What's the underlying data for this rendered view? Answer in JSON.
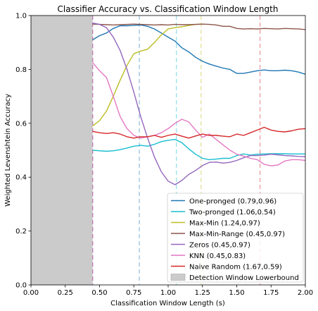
{
  "chart_data": {
    "type": "line",
    "title": "Classifier Accuracy vs. Classification Window Length",
    "xlabel": "Classification Window Length (s)",
    "ylabel": "Weighted Levenshtein Accuracy",
    "xlim": [
      0.0,
      2.0
    ],
    "ylim": [
      0.0,
      1.0
    ],
    "xticks": [
      "0.00",
      "0.25",
      "0.50",
      "0.75",
      "1.00",
      "1.25",
      "1.50",
      "1.75",
      "2.00"
    ],
    "yticks": [
      "0.0",
      "0.2",
      "0.4",
      "0.6",
      "0.8",
      "1.0"
    ],
    "grid": false,
    "legend_position": "lower-right",
    "shaded_region": {
      "label": "Detection Window Lowerbound",
      "x_range": [
        0.0,
        0.45
      ],
      "color": "#cbcbcb"
    },
    "series": [
      {
        "name": "One-pronged (0.79,0.96)",
        "color": "#1f77b4",
        "peak_x": 0.79,
        "x": [
          0.45,
          0.5,
          0.55,
          0.6,
          0.65,
          0.7,
          0.75,
          0.8,
          0.85,
          0.9,
          0.95,
          1.0,
          1.05,
          1.1,
          1.15,
          1.2,
          1.25,
          1.3,
          1.35,
          1.4,
          1.45,
          1.5,
          1.55,
          1.6,
          1.65,
          1.7,
          1.75,
          1.8,
          1.85,
          1.9,
          1.95,
          2.0
        ],
        "y": [
          0.91,
          0.925,
          0.935,
          0.952,
          0.962,
          0.962,
          0.963,
          0.965,
          0.96,
          0.95,
          0.935,
          0.92,
          0.905,
          0.88,
          0.865,
          0.845,
          0.83,
          0.82,
          0.812,
          0.805,
          0.8,
          0.785,
          0.785,
          0.79,
          0.795,
          0.798,
          0.795,
          0.795,
          0.797,
          0.795,
          0.79,
          0.782
        ]
      },
      {
        "name": "Two-pronged (1.06,0.54)",
        "color": "#17becf",
        "peak_x": 1.06,
        "x": [
          0.45,
          0.5,
          0.55,
          0.6,
          0.65,
          0.7,
          0.75,
          0.8,
          0.85,
          0.9,
          0.95,
          1.0,
          1.05,
          1.1,
          1.15,
          1.2,
          1.25,
          1.3,
          1.35,
          1.4,
          1.45,
          1.5,
          1.55,
          1.6,
          1.65,
          1.7,
          1.75,
          1.8,
          1.85,
          1.9,
          1.95,
          2.0
        ],
        "y": [
          0.5,
          0.498,
          0.496,
          0.498,
          0.502,
          0.508,
          0.515,
          0.518,
          0.515,
          0.522,
          0.532,
          0.537,
          0.54,
          0.528,
          0.505,
          0.485,
          0.47,
          0.465,
          0.467,
          0.47,
          0.47,
          0.48,
          0.486,
          0.482,
          0.485,
          0.486,
          0.487,
          0.487,
          0.487,
          0.486,
          0.486,
          0.486
        ]
      },
      {
        "name": "Max-Min (1.24,0.97)",
        "color": "#bcbd22",
        "peak_x": 1.24,
        "x": [
          0.45,
          0.5,
          0.55,
          0.6,
          0.65,
          0.7,
          0.75,
          0.8,
          0.85,
          0.9,
          0.95,
          1.0,
          1.05,
          1.1,
          1.15,
          1.2,
          1.25
        ],
        "y": [
          0.59,
          0.61,
          0.645,
          0.7,
          0.76,
          0.815,
          0.858,
          0.868,
          0.875,
          0.9,
          0.928,
          0.95,
          0.955,
          0.958,
          0.963,
          0.967,
          0.968
        ]
      },
      {
        "name": "Max-Min-Range (0.45,0.97)",
        "color": "#8c564b",
        "peak_x": 0.45,
        "x": [
          0.45,
          0.5,
          0.55,
          0.6,
          0.65,
          0.7,
          0.75,
          0.8,
          0.85,
          0.9,
          0.95,
          1.0,
          1.05,
          1.1,
          1.15,
          1.2,
          1.25,
          1.3,
          1.35,
          1.4,
          1.45,
          1.5,
          1.55,
          1.6,
          1.65,
          1.7,
          1.75,
          1.8,
          1.85,
          1.9,
          1.95,
          2.0
        ],
        "y": [
          0.968,
          0.967,
          0.966,
          0.965,
          0.966,
          0.967,
          0.968,
          0.967,
          0.966,
          0.965,
          0.966,
          0.965,
          0.967,
          0.966,
          0.966,
          0.967,
          0.968,
          0.967,
          0.965,
          0.96,
          0.96,
          0.952,
          0.95,
          0.951,
          0.95,
          0.952,
          0.951,
          0.95,
          0.952,
          0.951,
          0.95,
          0.948
        ]
      },
      {
        "name": "Zeros (0.45,0.97)",
        "color": "#9467bd",
        "peak_x": 0.45,
        "x": [
          0.45,
          0.5,
          0.55,
          0.6,
          0.65,
          0.7,
          0.75,
          0.8,
          0.85,
          0.9,
          0.95,
          1.0,
          1.05,
          1.1,
          1.15,
          1.2,
          1.25,
          1.3,
          1.35,
          1.4,
          1.45,
          1.5,
          1.55,
          1.6,
          1.65,
          1.7,
          1.75,
          1.8,
          1.85,
          1.9,
          1.95,
          2.0
        ],
        "y": [
          0.972,
          0.967,
          0.955,
          0.92,
          0.87,
          0.8,
          0.715,
          0.625,
          0.545,
          0.475,
          0.42,
          0.385,
          0.372,
          0.388,
          0.41,
          0.425,
          0.443,
          0.455,
          0.456,
          0.452,
          0.455,
          0.462,
          0.472,
          0.48,
          0.48,
          0.482,
          0.485,
          0.483,
          0.48,
          0.479,
          0.477,
          0.476
        ]
      },
      {
        "name": "KNN (0.45,0.83)",
        "color": "#e377c2",
        "peak_x": 0.45,
        "x": [
          0.45,
          0.5,
          0.55,
          0.6,
          0.65,
          0.7,
          0.75,
          0.8,
          0.85,
          0.9,
          0.95,
          1.0,
          1.05,
          1.1,
          1.15,
          1.2,
          1.25,
          1.3,
          1.35,
          1.4,
          1.45,
          1.5,
          1.55,
          1.6,
          1.65,
          1.7,
          1.75,
          1.8,
          1.85,
          1.9,
          1.95,
          2.0
        ],
        "y": [
          0.825,
          0.795,
          0.77,
          0.7,
          0.625,
          0.58,
          0.555,
          0.545,
          0.55,
          0.555,
          0.565,
          0.58,
          0.6,
          0.615,
          0.605,
          0.575,
          0.548,
          0.56,
          0.54,
          0.52,
          0.5,
          0.485,
          0.478,
          0.47,
          0.465,
          0.448,
          0.442,
          0.445,
          0.46,
          0.465,
          0.465,
          0.462
        ]
      },
      {
        "name": "Naive Random (1.67,0.59)",
        "color": "#d62728",
        "peak_x": 1.67,
        "x": [
          0.45,
          0.5,
          0.55,
          0.6,
          0.65,
          0.7,
          0.75,
          0.8,
          0.85,
          0.9,
          0.95,
          1.0,
          1.05,
          1.1,
          1.15,
          1.2,
          1.25,
          1.3,
          1.35,
          1.4,
          1.45,
          1.5,
          1.55,
          1.6,
          1.65,
          1.7,
          1.75,
          1.8,
          1.85,
          1.9,
          1.95,
          2.0
        ],
        "y": [
          0.57,
          0.565,
          0.562,
          0.565,
          0.56,
          0.55,
          0.545,
          0.55,
          0.55,
          0.555,
          0.548,
          0.555,
          0.56,
          0.552,
          0.545,
          0.553,
          0.56,
          0.555,
          0.555,
          0.552,
          0.55,
          0.56,
          0.555,
          0.565,
          0.575,
          0.585,
          0.575,
          0.57,
          0.568,
          0.572,
          0.578,
          0.58
        ]
      }
    ]
  }
}
